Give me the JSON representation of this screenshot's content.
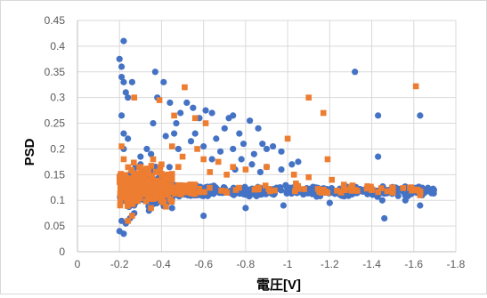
{
  "chart_data": {
    "type": "scatter",
    "title": "",
    "xlabel": "電圧[V]",
    "ylabel": "PSD",
    "xlim": [
      0,
      -1.8
    ],
    "ylim": [
      0,
      0.45
    ],
    "x_ticks": [
      "0",
      "-0.2",
      "-0.4",
      "-0.6",
      "-0.8",
      "-1",
      "-1.2",
      "-1.4",
      "-1.6",
      "-1.8"
    ],
    "y_ticks": [
      "0",
      "0.05",
      "0.1",
      "0.15",
      "0.2",
      "0.25",
      "0.3",
      "0.35",
      "0.4",
      "0.45"
    ],
    "x_axis_reversed": true,
    "grid": {
      "horizontal": true,
      "vertical": true
    },
    "legend": "none",
    "series": [
      {
        "marker": "circle",
        "color": "#4472C4",
        "band": {
          "x_from": -0.2,
          "x_to": -1.7,
          "y_center": 0.118,
          "y_spread": 0.022
        },
        "points": [
          [
            -0.22,
            0.41
          ],
          [
            -0.2,
            0.375
          ],
          [
            -0.21,
            0.36
          ],
          [
            -0.21,
            0.34
          ],
          [
            -0.22,
            0.33
          ],
          [
            -0.26,
            0.33
          ],
          [
            -0.23,
            0.31
          ],
          [
            -0.37,
            0.35
          ],
          [
            -0.24,
            0.3
          ],
          [
            -0.41,
            0.33
          ],
          [
            -0.44,
            0.29
          ],
          [
            -0.38,
            0.3
          ],
          [
            -0.36,
            0.25
          ],
          [
            -0.21,
            0.265
          ],
          [
            -0.52,
            0.29
          ],
          [
            -0.55,
            0.28
          ],
          [
            -0.49,
            0.27
          ],
          [
            -0.61,
            0.275
          ],
          [
            -0.64,
            0.27
          ],
          [
            -0.74,
            0.265
          ],
          [
            -0.72,
            0.26
          ],
          [
            -0.47,
            0.25
          ],
          [
            -0.58,
            0.26
          ],
          [
            -0.7,
            0.24
          ],
          [
            -0.82,
            0.255
          ],
          [
            -0.56,
            0.23
          ],
          [
            -0.66,
            0.22
          ],
          [
            -0.77,
            0.23
          ],
          [
            -0.86,
            0.24
          ],
          [
            -0.42,
            0.225
          ],
          [
            -0.6,
            0.205
          ],
          [
            -0.88,
            0.21
          ],
          [
            -0.93,
            0.205
          ],
          [
            -0.74,
            0.2
          ],
          [
            -0.68,
            0.195
          ],
          [
            -0.79,
            0.21
          ],
          [
            -0.9,
            0.2
          ],
          [
            -0.97,
            0.195
          ],
          [
            -0.84,
            0.19
          ],
          [
            -0.78,
            0.18
          ],
          [
            -0.83,
            0.17
          ],
          [
            -0.9,
            0.165
          ],
          [
            -1.02,
            0.17
          ],
          [
            -1.05,
            0.175
          ],
          [
            -0.97,
            0.16
          ],
          [
            -0.87,
            0.155
          ],
          [
            -0.75,
            0.16
          ],
          [
            -0.64,
            0.18
          ],
          [
            -1.32,
            0.35
          ],
          [
            -1.63,
            0.265
          ],
          [
            -1.43,
            0.265
          ],
          [
            -1.43,
            0.185
          ],
          [
            -0.22,
            0.2
          ],
          [
            -0.24,
            0.22
          ],
          [
            -0.22,
            0.23
          ],
          [
            -0.3,
            0.185
          ],
          [
            -0.33,
            0.2
          ],
          [
            -0.21,
            0.06
          ],
          [
            -0.2,
            0.04
          ],
          [
            -0.22,
            0.035
          ],
          [
            -0.23,
            0.055
          ],
          [
            -0.25,
            0.065
          ],
          [
            -0.6,
            0.07
          ],
          [
            -1.46,
            0.065
          ],
          [
            -1.63,
            0.09
          ],
          [
            -0.54,
            0.215
          ],
          [
            -0.35,
            0.19
          ],
          [
            -0.48,
            0.2
          ],
          [
            -0.46,
            0.23
          ],
          [
            -0.3,
            0.17
          ],
          [
            -1.56,
            0.1
          ],
          [
            -1.45,
            0.1
          ],
          [
            -1.2,
            0.095
          ],
          [
            -0.98,
            0.09
          ],
          [
            -0.8,
            0.085
          ],
          [
            -0.34,
            0.08
          ],
          [
            -0.27,
            0.075
          ],
          [
            -0.45,
            0.085
          ]
        ]
      },
      {
        "marker": "square",
        "color": "#ED7D31",
        "band": {
          "x_from": -0.2,
          "x_to": -1.65,
          "y_center": 0.122,
          "y_spread": 0.022
        },
        "points": [
          [
            -0.27,
            0.3
          ],
          [
            -0.39,
            0.295
          ],
          [
            -0.51,
            0.32
          ],
          [
            -0.46,
            0.265
          ],
          [
            -0.56,
            0.26
          ],
          [
            -0.61,
            0.25
          ],
          [
            -1.61,
            0.322
          ],
          [
            -1.1,
            0.3
          ],
          [
            -1.17,
            0.27
          ],
          [
            -1.0,
            0.22
          ],
          [
            -0.21,
            0.205
          ],
          [
            -0.22,
            0.18
          ],
          [
            -0.5,
            0.185
          ],
          [
            -0.57,
            0.2
          ],
          [
            -0.6,
            0.18
          ],
          [
            -0.67,
            0.175
          ],
          [
            -0.74,
            0.165
          ],
          [
            -0.8,
            0.16
          ],
          [
            -0.9,
            0.165
          ],
          [
            -1.19,
            0.18
          ],
          [
            -0.45,
            0.205
          ],
          [
            -0.36,
            0.18
          ],
          [
            -0.4,
            0.17
          ],
          [
            -0.48,
            0.165
          ],
          [
            -0.63,
            0.155
          ],
          [
            -0.71,
            0.15
          ],
          [
            -1.03,
            0.15
          ],
          [
            -1.1,
            0.145
          ],
          [
            -1.21,
            0.14
          ],
          [
            -0.3,
            0.165
          ],
          [
            -0.24,
            0.06
          ],
          [
            -0.26,
            0.07
          ],
          [
            -0.35,
            0.085
          ],
          [
            -1.63,
            0.11
          ],
          [
            -1.5,
            0.115
          ],
          [
            -1.4,
            0.12
          ]
        ]
      }
    ]
  }
}
